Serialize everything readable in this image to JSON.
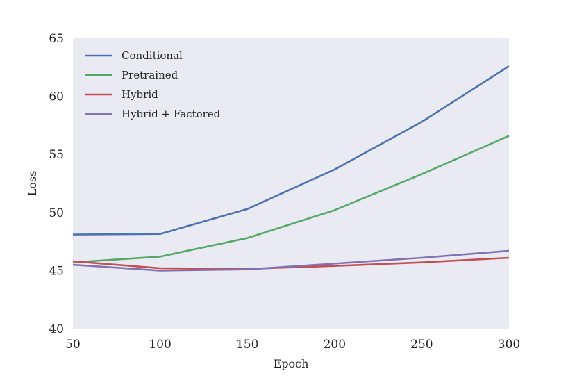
{
  "chart_data": {
    "type": "line",
    "title": "",
    "xlabel": "Epoch",
    "ylabel": "Loss",
    "x": [
      50,
      100,
      150,
      200,
      250,
      300
    ],
    "xlim": [
      50,
      300
    ],
    "ylim": [
      40,
      65
    ],
    "xticks": [
      "50",
      "100",
      "150",
      "200",
      "250",
      "300"
    ],
    "yticks": [
      "40",
      "45",
      "50",
      "55",
      "60",
      "65"
    ],
    "grid": false,
    "legend_position": "top-left",
    "background": "#eaeaf2",
    "series": [
      {
        "name": "Conditional",
        "color": "#4c72b0",
        "values": [
          48.1,
          48.15,
          50.3,
          53.7,
          57.8,
          62.6
        ]
      },
      {
        "name": "Pretrained",
        "color": "#55a868",
        "values": [
          45.7,
          46.2,
          47.8,
          50.2,
          53.3,
          56.6
        ]
      },
      {
        "name": "Hybrid",
        "color": "#c44e52",
        "values": [
          45.8,
          45.2,
          45.15,
          45.4,
          45.7,
          46.1
        ]
      },
      {
        "name": "Hybrid + Factored",
        "color": "#8172b2",
        "values": [
          45.5,
          45.0,
          45.1,
          45.6,
          46.1,
          46.7
        ]
      }
    ]
  }
}
